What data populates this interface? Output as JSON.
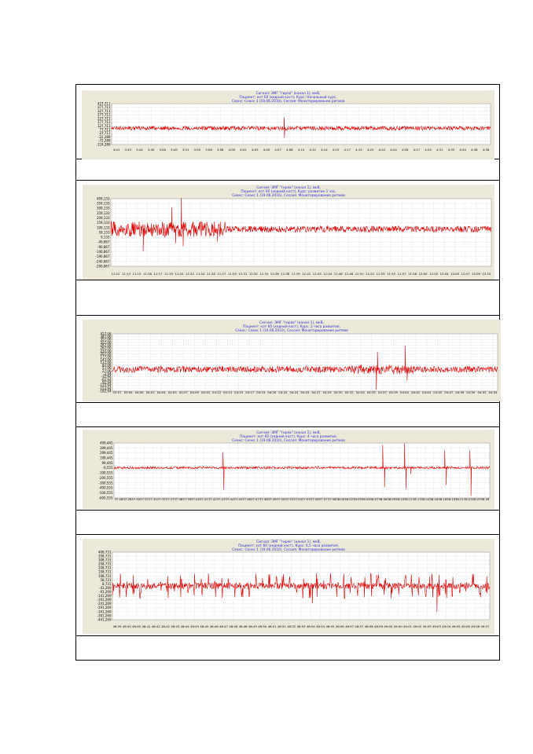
{
  "charts": [
    {
      "header": [
        "Сигнал: ЭМГ \"гиряк\" (канал 1), мкВ,",
        "Пациент: кот 60 (хедний кост), Курс: Начальный курс,",
        "Сеанс: Сеанс 3 (19.06.2010), Сессия: Мониторирование ритмов"
      ],
      "y_ticks": [
        "427,711",
        "377,711",
        "327,711",
        "277,711",
        "227,711",
        "177,711",
        "127,711",
        "77,711",
        "27,711",
        "-22,289",
        "-72,289",
        "-124,289"
      ],
      "x_ticks": [
        "3:41",
        "3:43",
        "3:44",
        "3:45",
        "3:48",
        "3:49",
        "3:51",
        "3:55",
        "3:56",
        "3:58",
        "4:00",
        "4:01",
        "4:03",
        "4:05",
        "4:07",
        "4:08",
        "4:10",
        "4:12",
        "4:14",
        "4:15",
        "4:17",
        "4:19",
        "4:20",
        "4:22",
        "4:24",
        "4:26",
        "4:27",
        "4:29",
        "4:31",
        "4:33",
        "4:34",
        "4:36",
        "4:38"
      ]
    },
    {
      "header": [
        "Сигнал: ЭМГ \"гиряк\" (канал 1), мкВ,",
        "Пациент: кот 60 (хедний кост), Курс: развитие 1 час,",
        "Сеанс: Сеанс 1 (19.06.2010), Сессия: Мониторирование ритмов"
      ],
      "y_ticks": [
        "409,133",
        "359,133",
        "309,133",
        "259,133",
        "209,133",
        "159,133",
        "109,133",
        "59,133",
        "9,133",
        "-40,867",
        "-90,867",
        "-140,867",
        "-190,867",
        "-240,867",
        "-290,867"
      ],
      "x_ticks": [
        "11:12",
        "11:13",
        "11:15",
        "11:16",
        "11:17",
        "11:19",
        "11:20",
        "11:22",
        "11:24",
        "11:26",
        "11:27",
        "11:29",
        "11:31",
        "11:32",
        "11:34",
        "11:36",
        "11:38",
        "11:39",
        "11:41",
        "11:43",
        "11:44",
        "11:46",
        "11:48",
        "11:50",
        "11:51",
        "11:53",
        "11:55",
        "11:57",
        "11:58",
        "12:00",
        "12:02",
        "12:04",
        "12:05",
        "12:07",
        "12:09",
        "12:10"
      ]
    },
    {
      "header": [
        "Сигнал: ЭМГ \"гиряк\" (канал 1), мкВ,",
        "Пациент: кот 60 (хедний кост), Курс: 2 часа развития,",
        "Сеанс: Сеанс 1 (19.06.2010), Сессия: Мониторирование ритмов"
      ],
      "y_ticks": [
        "417,06",
        "387,06",
        "357,06",
        "327,06",
        "297,06",
        "267,06",
        "237,06",
        "207,06",
        "177,06",
        "147,06",
        "117,06",
        "87,06",
        "57,06",
        "27,06",
        "-2,94",
        "-32,94",
        "-62,94",
        "-92,94",
        "-122,94",
        "-152,94",
        "-182,94"
      ],
      "x_ticks": [
        "03:57",
        "03:59",
        "04:00",
        "04:02",
        "04:04",
        "04:05",
        "04:07",
        "04:09",
        "04:10",
        "04:12",
        "04:14",
        "04:15",
        "04:17",
        "04:19",
        "04:20",
        "04:22",
        "04:24",
        "04:25",
        "04:27",
        "04:29",
        "04:30",
        "04:32",
        "04:34",
        "04:35",
        "04:37",
        "04:39",
        "04:40",
        "04:42",
        "04:44",
        "04:45",
        "04:47",
        "04:49",
        "04:50",
        "04:52",
        "04:54"
      ]
    },
    {
      "header": [
        "Сигнал: ЭМГ \"гиряк\" (канал 1), мкВ,",
        "Пациент: кот 60 (хедний кост), Курс: 4 часа развития,",
        "Сеанс: Сеанс 1 (19.06.2010), Сессия: Мониторирование ритмов"
      ],
      "y_ticks": [
        "499,445",
        "399,445",
        "299,445",
        "199,445",
        "99,445",
        "-0,555",
        "-100,555",
        "-200,555",
        "-300,555",
        "-400,555",
        "-500,555",
        "-600,555"
      ],
      "x_ticks": [
        "37:26",
        "37:28",
        "37:30",
        "37:32",
        "37:34",
        "37:35",
        "37:37",
        "37:38",
        "37:39",
        "37:40",
        "37:41",
        "37:42",
        "37:43",
        "37:44",
        "37:45",
        "37:46",
        "37:47",
        "37:48",
        "37:49",
        "37:50",
        "37:52",
        "37:54",
        "37:55",
        "37:56",
        "37:57",
        "37:58",
        "38:00",
        "38:02",
        "38:05",
        "38:06",
        "38:07",
        "38:08",
        "38:09",
        "38:10",
        "38:11",
        "38:13",
        "38:14",
        "38:16",
        "38:18",
        "38:19",
        "38:21",
        "38:23",
        "38:25",
        "38:26"
      ]
    },
    {
      "header": [
        "Сигнал: ЭМГ \"гиряк\" (канал 1), мкВ,",
        "Пациент: кот 60 (хедний кост), Курс: 6,5 часа развития,",
        "Сеанс: Сеанс 1 (19.06.2010), Сессия: Мониторирование ритмов"
      ],
      "y_ticks": [
        "408,731",
        "358,731",
        "308,731",
        "258,731",
        "208,731",
        "158,731",
        "108,731",
        "58,731",
        "8,731",
        "-41,269",
        "-91,269",
        "-141,269",
        "-191,269",
        "-241,269",
        "-291,269",
        "-341,269",
        "-391,269",
        "-441,269"
      ],
      "x_ticks": [
        "48:39",
        "48:40",
        "48:40",
        "48:41",
        "48:42",
        "48:42",
        "48:43",
        "48:44",
        "48:45",
        "48:45",
        "48:46",
        "48:47",
        "48:48",
        "48:48",
        "48:49",
        "48:50",
        "48:51",
        "48:51",
        "48:52",
        "48:53",
        "48:54",
        "48:54",
        "48:55",
        "48:56",
        "48:57",
        "48:57",
        "48:58",
        "48:59",
        "49:00",
        "49:00",
        "49:01",
        "49:02",
        "49:03",
        "49:03",
        "49:04",
        "49:05",
        "49:06",
        "49:06",
        "49:07"
      ]
    }
  ],
  "colors": {
    "signal": "#e00000",
    "header_text": "#2a2ad8",
    "grid": "#c8c8c8",
    "panel_bg": "#ece9d8"
  }
}
